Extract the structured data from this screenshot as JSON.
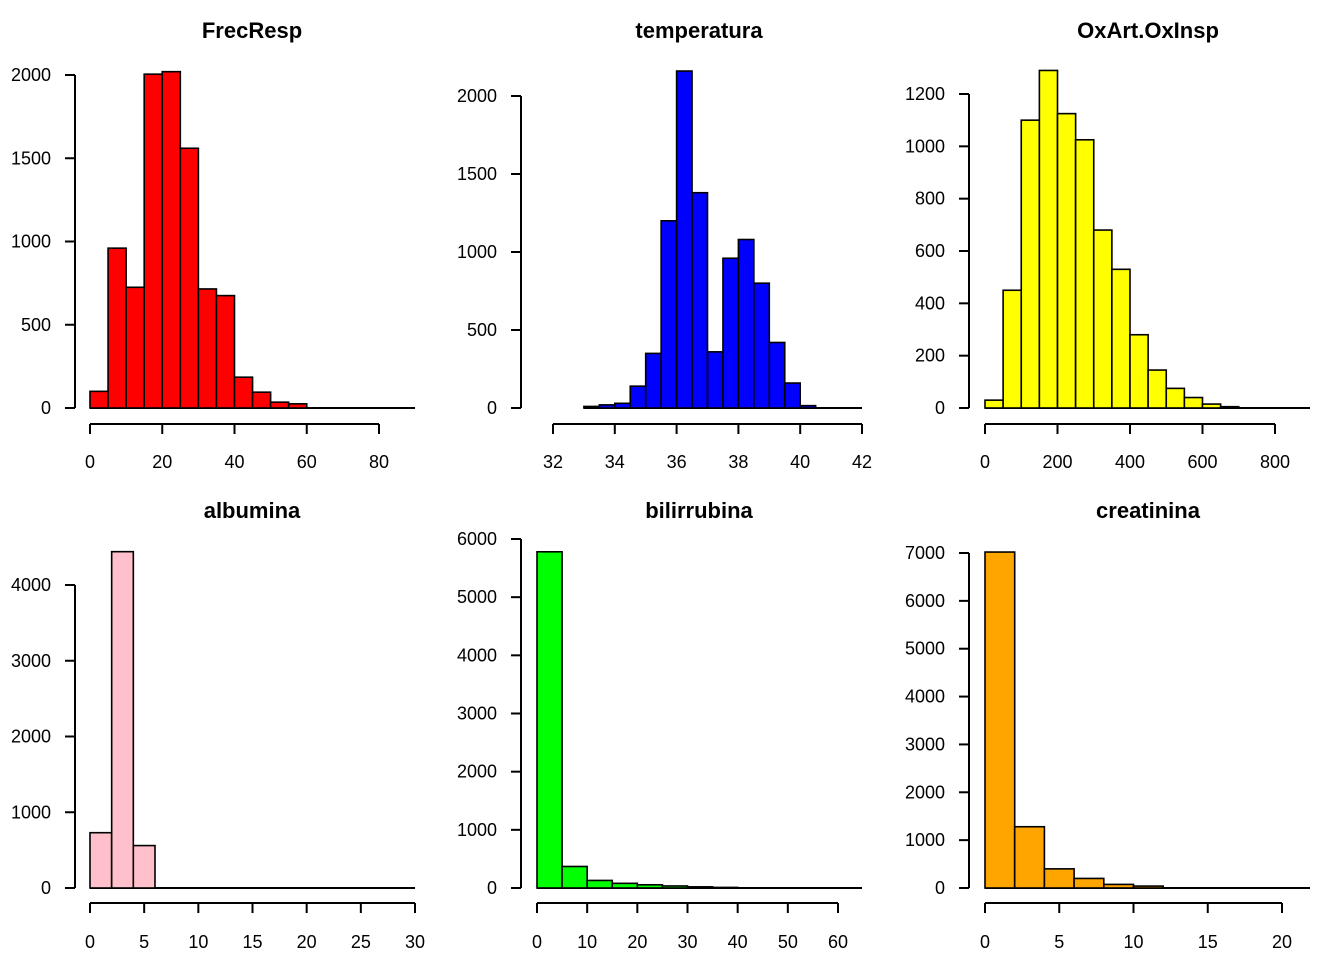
{
  "chart_data": [
    {
      "type": "bar",
      "title": "FrecResp",
      "color": "#ff0000",
      "xlim": [
        0,
        90
      ],
      "ylim": [
        0,
        2000
      ],
      "xticks": [
        0,
        20,
        40,
        60,
        80
      ],
      "yticks": [
        0,
        500,
        1000,
        1500,
        2000
      ],
      "bin_edges": [
        0,
        5,
        10,
        15,
        20,
        25,
        30,
        35,
        40,
        45,
        50,
        55,
        60
      ],
      "counts": [
        100,
        960,
        725,
        2005,
        2020,
        1560,
        715,
        675,
        185,
        95,
        35,
        25
      ]
    },
    {
      "type": "bar",
      "title": "temperatura",
      "color": "#0000ff",
      "xlim": [
        32,
        42
      ],
      "ylim": [
        0,
        2000
      ],
      "xticks": [
        32,
        34,
        36,
        38,
        40,
        42
      ],
      "yticks": [
        0,
        500,
        1000,
        1500,
        2000
      ],
      "bin_edges": [
        33,
        33.5,
        34,
        34.5,
        35,
        35.5,
        36,
        36.5,
        37,
        37.5,
        38,
        38.5,
        39,
        39.5,
        40,
        40.5
      ],
      "counts": [
        10,
        20,
        30,
        140,
        350,
        1200,
        2160,
        1380,
        360,
        960,
        1080,
        800,
        420,
        160,
        15
      ]
    },
    {
      "type": "bar",
      "title": "OxArt.OxInsp",
      "color": "#ffff00",
      "xlim": [
        0,
        900
      ],
      "ylim": [
        0,
        1200
      ],
      "xticks": [
        0,
        200,
        400,
        600,
        800
      ],
      "yticks": [
        0,
        200,
        400,
        600,
        800,
        1000,
        1200
      ],
      "bin_edges": [
        0,
        50,
        100,
        150,
        200,
        250,
        300,
        350,
        400,
        450,
        500,
        550,
        600,
        650,
        700
      ],
      "counts": [
        30,
        450,
        1100,
        1290,
        1125,
        1025,
        680,
        530,
        280,
        145,
        75,
        40,
        15,
        5
      ]
    },
    {
      "type": "bar",
      "title": "albumina",
      "color": "#ffc0cb",
      "xlim": [
        0,
        30
      ],
      "ylim": [
        0,
        4000
      ],
      "xticks": [
        0,
        5,
        10,
        15,
        20,
        25,
        30
      ],
      "yticks": [
        0,
        1000,
        2000,
        3000,
        4000
      ],
      "bin_edges": [
        0,
        2,
        4,
        6
      ],
      "counts": [
        730,
        4440,
        560
      ]
    },
    {
      "type": "bar",
      "title": "bilirrubina",
      "color": "#00ff00",
      "xlim": [
        0,
        65
      ],
      "ylim": [
        0,
        6000
      ],
      "xticks": [
        0,
        10,
        20,
        30,
        40,
        50,
        60
      ],
      "yticks": [
        0,
        1000,
        2000,
        3000,
        4000,
        5000,
        6000
      ],
      "bin_edges": [
        0,
        5,
        10,
        15,
        20,
        25,
        30,
        35,
        40
      ],
      "counts": [
        5780,
        370,
        130,
        80,
        55,
        35,
        20,
        10
      ]
    },
    {
      "type": "bar",
      "title": "creatinina",
      "color": "#ffa500",
      "xlim": [
        0,
        22
      ],
      "ylim": [
        0,
        7000
      ],
      "xticks": [
        0,
        5,
        10,
        15,
        20
      ],
      "yticks": [
        0,
        1000,
        2000,
        3000,
        4000,
        5000,
        6000,
        7000
      ],
      "bin_edges": [
        0,
        2,
        4,
        6,
        8,
        10,
        12
      ],
      "counts": [
        7020,
        1280,
        400,
        200,
        75,
        40
      ]
    }
  ]
}
